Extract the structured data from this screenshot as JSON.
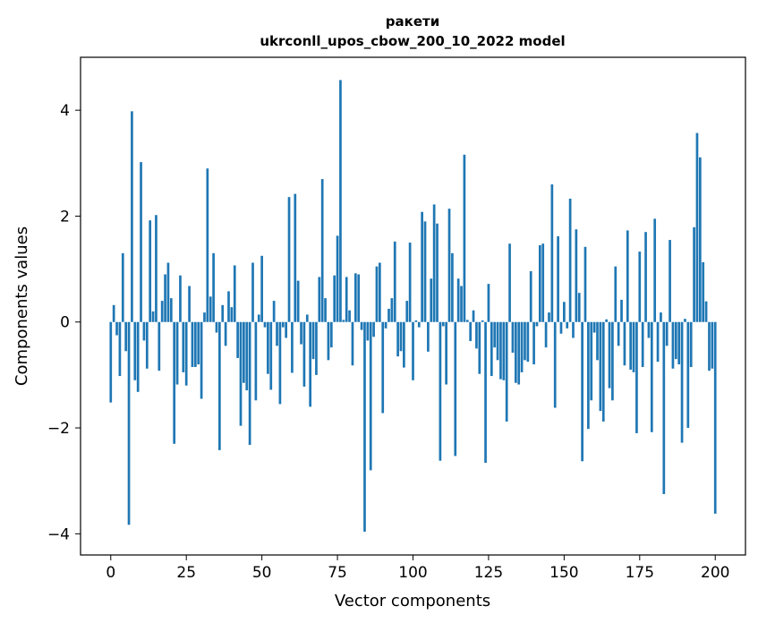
{
  "chart_data": {
    "type": "bar",
    "title": "ракети",
    "subtitle": "ukrconll_upos_cbow_200_10_2022 model",
    "xlabel": "Vector components",
    "ylabel": "Components values",
    "xlim": [
      -10,
      210
    ],
    "ylim": [
      -4.4,
      5.0
    ],
    "xticks": [
      0,
      25,
      50,
      75,
      100,
      125,
      150,
      175,
      200
    ],
    "xtick_labels": [
      "0",
      "25",
      "50",
      "75",
      "100",
      "125",
      "150",
      "175",
      "200"
    ],
    "yticks": [
      -4,
      -2,
      0,
      2,
      4
    ],
    "ytick_labels": [
      "−4",
      "−2",
      "0",
      "2",
      "4"
    ],
    "grid": false,
    "legend": "none",
    "bar_color": "#1f77b4",
    "values": [
      -1.52,
      0.32,
      -0.25,
      -1.02,
      1.3,
      -0.55,
      -3.83,
      3.98,
      -1.1,
      -1.32,
      3.02,
      -0.35,
      -0.88,
      1.92,
      0.2,
      2.02,
      -0.92,
      0.4,
      0.9,
      1.12,
      0.45,
      -2.3,
      -1.18,
      0.88,
      -0.95,
      -1.2,
      0.68,
      -0.85,
      -0.85,
      -0.8,
      -1.45,
      0.18,
      2.9,
      0.48,
      1.3,
      -0.2,
      -2.42,
      0.32,
      -0.45,
      0.58,
      0.28,
      1.07,
      -0.68,
      -1.96,
      -1.15,
      -1.29,
      -2.32,
      1.12,
      -1.48,
      0.14,
      1.25,
      -0.1,
      -0.98,
      -1.28,
      0.4,
      -0.45,
      -1.55,
      -0.1,
      -0.3,
      2.36,
      -0.96,
      2.42,
      0.78,
      -0.42,
      -1.22,
      0.14,
      -1.6,
      -0.7,
      -1.0,
      0.85,
      2.7,
      0.45,
      -0.72,
      -0.48,
      0.88,
      1.63,
      4.57,
      0.04,
      0.85,
      0.22,
      -0.82,
      0.92,
      0.9,
      -0.15,
      -3.96,
      -0.35,
      -2.8,
      -0.28,
      1.05,
      1.12,
      -1.72,
      -0.12,
      0.25,
      0.45,
      1.52,
      -0.65,
      -0.55,
      -0.86,
      0.4,
      1.5,
      -1.1,
      0.03,
      -0.1,
      2.08,
      1.9,
      -0.56,
      0.82,
      2.22,
      1.86,
      -2.62,
      -0.08,
      -1.18,
      2.14,
      1.3,
      -2.53,
      0.82,
      0.68,
      3.16,
      0.04,
      -0.36,
      0.22,
      -0.5,
      -0.98,
      0.03,
      -2.66,
      0.72,
      -1.02,
      -0.48,
      -0.72,
      -1.08,
      -1.1,
      -1.88,
      1.48,
      -0.58,
      -1.15,
      -1.18,
      -0.95,
      -0.72,
      -0.75,
      0.96,
      -0.8,
      -0.08,
      1.45,
      1.48,
      -0.48,
      0.18,
      2.6,
      -1.62,
      1.62,
      -0.22,
      0.38,
      -0.12,
      2.33,
      -0.3,
      1.75,
      0.55,
      -2.63,
      1.42,
      -2.02,
      -1.48,
      -0.2,
      -0.72,
      -1.68,
      -1.88,
      0.05,
      -1.25,
      -1.48,
      1.05,
      -0.45,
      0.42,
      -0.82,
      1.73,
      -0.9,
      -0.95,
      -2.1,
      1.33,
      -0.85,
      1.7,
      -0.3,
      -2.08,
      1.95,
      -0.75,
      0.18,
      -3.25,
      -0.45,
      1.55,
      -0.88,
      -0.7,
      -0.8,
      -2.28,
      0.06,
      -2.0,
      -0.85,
      1.79,
      3.57,
      3.11,
      1.13,
      0.39,
      -0.92,
      -0.88,
      -3.62
    ]
  }
}
